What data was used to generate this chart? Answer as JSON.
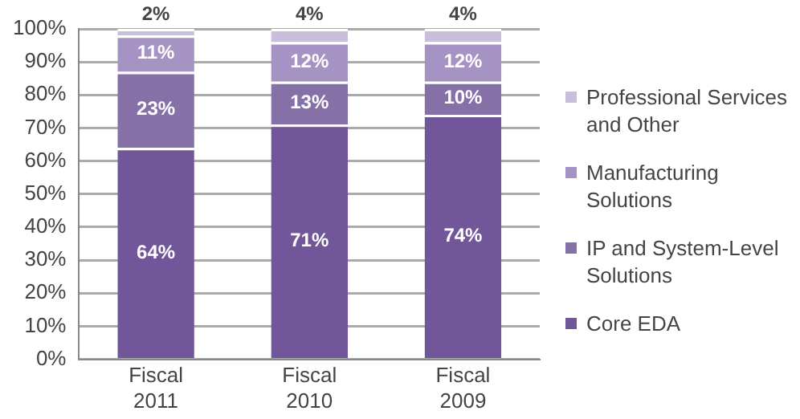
{
  "chart_data": {
    "type": "bar",
    "stacked": true,
    "categories": [
      "Fiscal 2011",
      "Fiscal 2010",
      "Fiscal 2009"
    ],
    "series": [
      {
        "name": "Core EDA",
        "color": "#72569a",
        "values": [
          64,
          71,
          74
        ],
        "value_labels": [
          "64%",
          "71%",
          "74%"
        ]
      },
      {
        "name": "IP and System-Level Solutions",
        "color": "#8670a8",
        "values": [
          23,
          13,
          10
        ],
        "value_labels": [
          "23%",
          "13%",
          "10%"
        ]
      },
      {
        "name": "Manufacturing Solutions",
        "color": "#a593c3",
        "values": [
          11,
          12,
          12
        ],
        "value_labels": [
          "11%",
          "12%",
          "12%"
        ]
      },
      {
        "name": "Professional Services and Other",
        "color": "#c9bfdd",
        "values": [
          2,
          4,
          4
        ],
        "value_labels": [
          "2%",
          "4%",
          "4%"
        ]
      }
    ],
    "ylim": [
      0,
      100
    ],
    "yticks": [
      {
        "value": 0,
        "label": "0%"
      },
      {
        "value": 10,
        "label": "10%"
      },
      {
        "value": 20,
        "label": "20%"
      },
      {
        "value": 30,
        "label": "30%"
      },
      {
        "value": 40,
        "label": "40%"
      },
      {
        "value": 50,
        "label": "50%"
      },
      {
        "value": 60,
        "label": "60%"
      },
      {
        "value": 70,
        "label": "70%"
      },
      {
        "value": 80,
        "label": "80%"
      },
      {
        "value": 90,
        "label": "90%"
      },
      {
        "value": 100,
        "label": "100%"
      }
    ],
    "grid": "y",
    "legend": "right"
  }
}
